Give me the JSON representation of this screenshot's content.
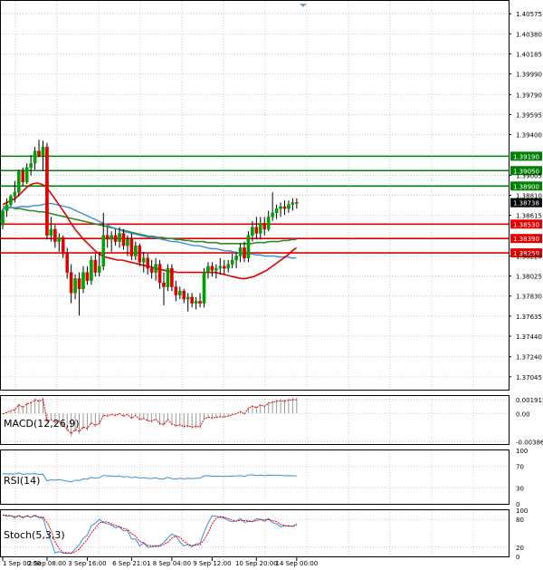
{
  "chart_data": {
    "type": "candlestick",
    "instrument_hint": "price chart with moving averages, support/resistance levels and oscillators",
    "colors": {
      "bull": "#00a000",
      "bear": "#e00000",
      "ma_fast": "#e00000",
      "ma_mid": "#3a8fd8",
      "ma_slow": "#2e8b2e",
      "resistance": "#008000",
      "support": "#e00000",
      "grid": "#c8c8c8",
      "osc_line": "#3a8fd8",
      "osc_signal": "#e00000"
    },
    "price_axis": {
      "ylim": [
        1.3692,
        1.407
      ],
      "ticks": [
        "1.40575",
        "1.40380",
        "1.40185",
        "1.39990",
        "1.39790",
        "1.39595",
        "1.39400",
        "1.39005",
        "1.38810",
        "1.38615",
        "1.38220",
        "1.38025",
        "1.37830",
        "1.37635",
        "1.37440",
        "1.37240",
        "1.37045"
      ]
    },
    "time_axis": {
      "labels": [
        "1 Sep 00:00",
        "2 Sep 08:00",
        "3 Sep 16:00",
        "6 Sep 21:01",
        "8 Sep 04:00",
        "9 Sep 12:00",
        "10 Sep 20:00",
        "14 Sep 00:00"
      ],
      "label_index": [
        0,
        11,
        21,
        32,
        42,
        52,
        63,
        73
      ]
    },
    "levels": [
      {
        "price": 1.3919,
        "label": "1.39190",
        "kind": "resistance"
      },
      {
        "price": 1.3905,
        "label": "1.39050",
        "kind": "resistance"
      },
      {
        "price": 1.389,
        "label": "1.38900",
        "kind": "resistance"
      },
      {
        "price": 1.3853,
        "label": "1.38530",
        "kind": "support"
      },
      {
        "price": 1.3839,
        "label": "1.38390",
        "kind": "support"
      },
      {
        "price": 1.3825,
        "label": "1.38250",
        "kind": "support"
      }
    ],
    "current_price": {
      "price": 1.38738,
      "label": "1.38738"
    },
    "candles": [
      [
        1.3852,
        1.3868,
        1.3848,
        1.3866
      ],
      [
        1.3866,
        1.3878,
        1.386,
        1.3872
      ],
      [
        1.3872,
        1.3882,
        1.387,
        1.388
      ],
      [
        1.388,
        1.3895,
        1.3874,
        1.3884
      ],
      [
        1.3884,
        1.3906,
        1.388,
        1.3904
      ],
      [
        1.3904,
        1.3908,
        1.389,
        1.3894
      ],
      [
        1.3894,
        1.3912,
        1.3892,
        1.3908
      ],
      [
        1.3908,
        1.392,
        1.39,
        1.3912
      ],
      [
        1.3912,
        1.3928,
        1.3906,
        1.3924
      ],
      [
        1.3924,
        1.3935,
        1.3918,
        1.392
      ],
      [
        1.392,
        1.3934,
        1.3905,
        1.3928
      ],
      [
        1.3928,
        1.3932,
        1.3838,
        1.3842
      ],
      [
        1.3842,
        1.386,
        1.3836,
        1.3848
      ],
      [
        1.3848,
        1.3852,
        1.383,
        1.3836
      ],
      [
        1.3836,
        1.3844,
        1.3826,
        1.384
      ],
      [
        1.384,
        1.3842,
        1.382,
        1.3824
      ],
      [
        1.3824,
        1.383,
        1.38,
        1.3806
      ],
      [
        1.3806,
        1.3814,
        1.3776,
        1.3786
      ],
      [
        1.3786,
        1.3804,
        1.378,
        1.38
      ],
      [
        1.38,
        1.3806,
        1.3764,
        1.379
      ],
      [
        1.379,
        1.3812,
        1.3786,
        1.3806
      ],
      [
        1.3806,
        1.3812,
        1.3794,
        1.3798
      ],
      [
        1.3798,
        1.3822,
        1.3794,
        1.3818
      ],
      [
        1.3818,
        1.3824,
        1.3802,
        1.3806
      ],
      [
        1.3806,
        1.3826,
        1.3802,
        1.3812
      ],
      [
        1.3812,
        1.3864,
        1.3808,
        1.3842
      ],
      [
        1.3842,
        1.385,
        1.383,
        1.3838
      ],
      [
        1.3838,
        1.3846,
        1.3826,
        1.3842
      ],
      [
        1.3842,
        1.3848,
        1.3832,
        1.3836
      ],
      [
        1.3836,
        1.385,
        1.383,
        1.3844
      ],
      [
        1.3844,
        1.3848,
        1.3828,
        1.3832
      ],
      [
        1.3832,
        1.3842,
        1.3822,
        1.3838
      ],
      [
        1.3838,
        1.3844,
        1.3818,
        1.3822
      ],
      [
        1.3822,
        1.3836,
        1.3818,
        1.3832
      ],
      [
        1.3832,
        1.3834,
        1.3812,
        1.3816
      ],
      [
        1.3816,
        1.3826,
        1.3806,
        1.382
      ],
      [
        1.382,
        1.3824,
        1.3804,
        1.381
      ],
      [
        1.381,
        1.3818,
        1.38,
        1.3806
      ],
      [
        1.3806,
        1.382,
        1.3798,
        1.3814
      ],
      [
        1.3814,
        1.3818,
        1.379,
        1.3796
      ],
      [
        1.3796,
        1.3806,
        1.3774,
        1.3792
      ],
      [
        1.3792,
        1.3814,
        1.3788,
        1.381
      ],
      [
        1.381,
        1.3814,
        1.3788,
        1.3792
      ],
      [
        1.3792,
        1.3798,
        1.3778,
        1.3784
      ],
      [
        1.3784,
        1.3792,
        1.378,
        1.3788
      ],
      [
        1.3788,
        1.379,
        1.3776,
        1.378
      ],
      [
        1.378,
        1.3786,
        1.3768,
        1.3782
      ],
      [
        1.3782,
        1.3786,
        1.3772,
        1.3776
      ],
      [
        1.3776,
        1.3782,
        1.377,
        1.3778
      ],
      [
        1.3778,
        1.3786,
        1.3772,
        1.3776
      ],
      [
        1.3776,
        1.381,
        1.3772,
        1.3806
      ],
      [
        1.3806,
        1.3816,
        1.38,
        1.3812
      ],
      [
        1.3812,
        1.3816,
        1.3802,
        1.3808
      ],
      [
        1.3808,
        1.3814,
        1.38,
        1.381
      ],
      [
        1.381,
        1.382,
        1.3804,
        1.3812
      ],
      [
        1.3812,
        1.3818,
        1.3804,
        1.381
      ],
      [
        1.381,
        1.3818,
        1.3806,
        1.3814
      ],
      [
        1.3814,
        1.3824,
        1.381,
        1.3818
      ],
      [
        1.3818,
        1.3826,
        1.381,
        1.3822
      ],
      [
        1.3822,
        1.3834,
        1.3816,
        1.383
      ],
      [
        1.383,
        1.3836,
        1.3816,
        1.382
      ],
      [
        1.382,
        1.3846,
        1.3816,
        1.3842
      ],
      [
        1.3842,
        1.3856,
        1.3836,
        1.385
      ],
      [
        1.385,
        1.386,
        1.3838,
        1.3844
      ],
      [
        1.3844,
        1.386,
        1.3838,
        1.3854
      ],
      [
        1.3854,
        1.386,
        1.3842,
        1.3848
      ],
      [
        1.3848,
        1.3866,
        1.3846,
        1.386
      ],
      [
        1.386,
        1.3884,
        1.3856,
        1.3864
      ],
      [
        1.3864,
        1.3872,
        1.3858,
        1.3868
      ],
      [
        1.3868,
        1.3874,
        1.386,
        1.387
      ],
      [
        1.387,
        1.3876,
        1.3862,
        1.3868
      ],
      [
        1.3868,
        1.3876,
        1.3864,
        1.3872
      ],
      [
        1.3872,
        1.3878,
        1.3866,
        1.3874
      ],
      [
        1.3874,
        1.3878,
        1.3868,
        1.38738
      ]
    ],
    "ma_fast": [
      1.3872,
      1.3874,
      1.3876,
      1.3878,
      1.3882,
      1.3886,
      1.389,
      1.3892,
      1.3893,
      1.3892,
      1.389,
      1.3885,
      1.3879,
      1.3873,
      1.3867,
      1.3861,
      1.3854,
      1.3848,
      1.3843,
      1.3838,
      1.3834,
      1.383,
      1.3826,
      1.3823,
      1.3821,
      1.382,
      1.3819,
      1.3818,
      1.3818,
      1.3817,
      1.3816,
      1.3815,
      1.3814,
      1.3813,
      1.3812,
      1.3811,
      1.381,
      1.3809,
      1.3808,
      1.3807,
      1.3807,
      1.3806,
      1.3806,
      1.3806,
      1.3806,
      1.3806,
      1.3806,
      1.3806,
      1.3806,
      1.3806,
      1.3806,
      1.3805,
      1.3804,
      1.3803,
      1.3802,
      1.3801,
      1.38,
      1.38,
      1.3801,
      1.3802,
      1.3804,
      1.3806,
      1.3808,
      1.3811,
      1.3814,
      1.3817,
      1.382,
      1.3823,
      1.3827,
      1.383
    ],
    "ma_mid": [
      1.3868,
      1.3868,
      1.3869,
      1.3869,
      1.387,
      1.387,
      1.387,
      1.3871,
      1.3871,
      1.3872,
      1.3873,
      1.3873,
      1.3872,
      1.3871,
      1.387,
      1.3869,
      1.3867,
      1.3865,
      1.3863,
      1.3861,
      1.3859,
      1.3857,
      1.3855,
      1.3853,
      1.3851,
      1.3849,
      1.3848,
      1.3846,
      1.3845,
      1.3844,
      1.3843,
      1.3842,
      1.3841,
      1.384,
      1.384,
      1.3839,
      1.3838,
      1.3837,
      1.3836,
      1.3836,
      1.3835,
      1.3834,
      1.3833,
      1.3832,
      1.3832,
      1.3831,
      1.383,
      1.3829,
      1.3829,
      1.3828,
      1.3827,
      1.3827,
      1.3826,
      1.3825,
      1.3825,
      1.3824,
      1.3824,
      1.3823,
      1.3823,
      1.3822,
      1.3822,
      1.3822,
      1.3821,
      1.3821,
      1.3821,
      1.382,
      1.382
    ],
    "ma_slow": [
      1.387,
      1.3869,
      1.3869,
      1.3868,
      1.3868,
      1.3867,
      1.3866,
      1.3866,
      1.3865,
      1.3865,
      1.3864,
      1.3863,
      1.3862,
      1.3861,
      1.386,
      1.3859,
      1.3858,
      1.3857,
      1.3856,
      1.3855,
      1.3854,
      1.3853,
      1.3852,
      1.3851,
      1.385,
      1.3849,
      1.3848,
      1.3847,
      1.3846,
      1.3845,
      1.3844,
      1.3843,
      1.3842,
      1.3841,
      1.3841,
      1.384,
      1.384,
      1.3839,
      1.3839,
      1.3838,
      1.3838,
      1.3837,
      1.3837,
      1.3836,
      1.3836,
      1.3836,
      1.3835,
      1.3835,
      1.3835,
      1.3834,
      1.3834,
      1.3834,
      1.3834,
      1.3834,
      1.3834,
      1.3834,
      1.3834,
      1.3835,
      1.3835,
      1.3835,
      1.3836,
      1.3836,
      1.3836,
      1.3837,
      1.3837,
      1.3838,
      1.3838
    ],
    "macd": {
      "label": "MACD(12,26,9)",
      "ticks": [
        "0.001915",
        "0.00",
        "-0.003862"
      ],
      "tick_values": [
        0.001915,
        0.0,
        -0.003862
      ],
      "ylim": [
        -0.0042,
        0.0024
      ]
    },
    "rsi": {
      "label": "RSI(14)",
      "ticks": [
        "100",
        "70",
        "30",
        "0"
      ],
      "tick_values": [
        100,
        70,
        30,
        0
      ],
      "ylim": [
        0,
        100
      ]
    },
    "stoch": {
      "label": "Stoch(5,3,3)",
      "ticks": [
        "100",
        "80",
        "20",
        "0"
      ],
      "tick_values": [
        100,
        80,
        20,
        0
      ],
      "ylim": [
        0,
        100
      ]
    }
  }
}
